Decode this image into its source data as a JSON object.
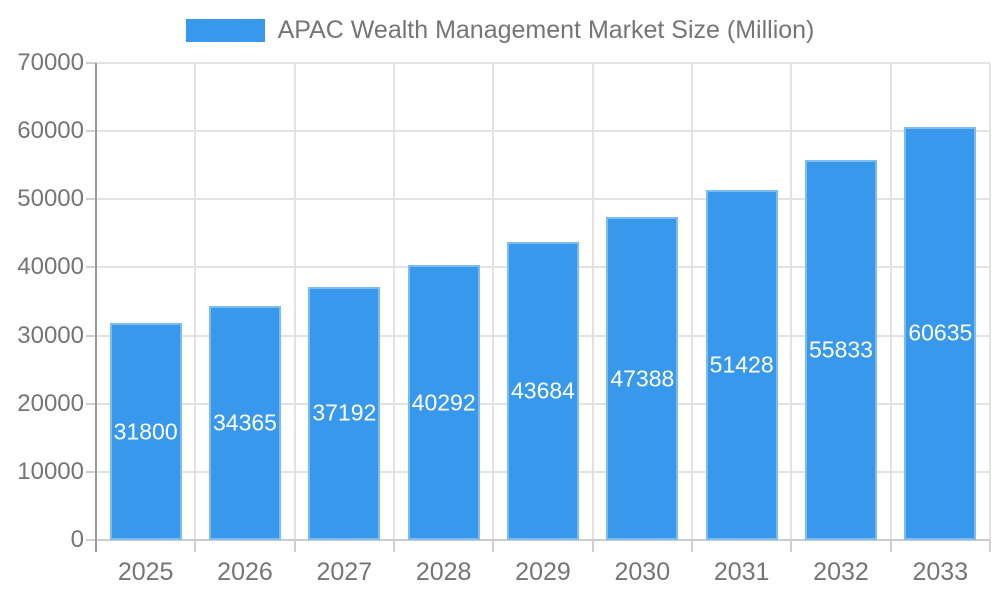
{
  "legend": {
    "position": "top"
  },
  "chart_data": {
    "type": "bar",
    "title": "APAC Wealth Management Market Size (Million)",
    "categories": [
      "2025",
      "2026",
      "2027",
      "2028",
      "2029",
      "2030",
      "2031",
      "2032",
      "2033"
    ],
    "values": [
      31800,
      34365,
      37192,
      40292,
      43684,
      47388,
      51428,
      55833,
      60635
    ],
    "xlabel": "",
    "ylabel": "",
    "ylim": [
      0,
      70000
    ],
    "ytick_step": 10000,
    "ytick_labels": [
      "0",
      "10000",
      "20000",
      "30000",
      "40000",
      "50000",
      "60000",
      "70000"
    ],
    "grid": true,
    "legend_position": "top",
    "colors": {
      "bar_fill": "#3899ec",
      "bar_edge_highlight": "rgba(255,255,255,0.35)",
      "value_label": "#ffffff",
      "axis_text": "#757575",
      "grid_line": "#e2e2e2",
      "tick_line": "#cfcfcf",
      "x_axis_line": "#cccccc",
      "y_axis_line": "#999999"
    }
  }
}
